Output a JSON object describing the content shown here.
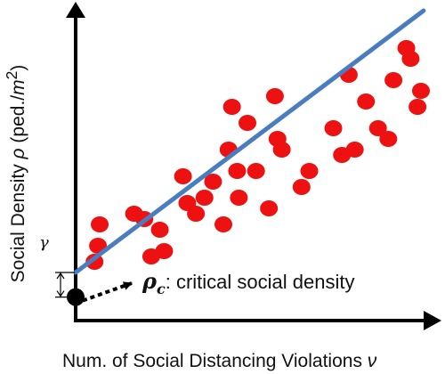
{
  "chart_data": {
    "type": "scatter",
    "title": "",
    "ylabel": "Social Density ρ (ped./m²)",
    "ylabel_parts": {
      "text": "Social Density ",
      "sym": "ρ",
      "unit": "(ped./",
      "unit_var": "m",
      "unit_exp": "2",
      "close": ")"
    },
    "xlabel": "Num. of Social Distancing Violations ν",
    "xlabel_parts": {
      "text": "Num. of Social Distancing Violations ",
      "sym": "ν"
    },
    "annotation": {
      "symbol": "ρ",
      "subscript": "c",
      "text": ": critical social density"
    },
    "offset_label": "γ",
    "colors": {
      "points": "#ee1111",
      "fit": "#4a7cc0",
      "axes": "#000000",
      "marker": "#000000"
    },
    "x": [
      22,
      26,
      28,
      68,
      80,
      88,
      98,
      103,
      125,
      130,
      140,
      150,
      160,
      172,
      178,
      182,
      188,
      190,
      200,
      210,
      225,
      232,
      235,
      240,
      263,
      272,
      300,
      310,
      318,
      325,
      338,
      352,
      364,
      370,
      385,
      390,
      398,
      402
    ],
    "y": [
      5.5,
      7.0,
      9.0,
      10.0,
      9.5,
      6.0,
      8.5,
      6.5,
      13.5,
      11.0,
      10.0,
      11.5,
      13.0,
      9.0,
      16.0,
      20.0,
      14.0,
      11.5,
      18.5,
      14.0,
      10.5,
      21.0,
      17.0,
      16.0,
      12.5,
      14.0,
      18.0,
      15.5,
      23.0,
      16.0,
      20.5,
      18.0,
      17.0,
      22.5,
      25.5,
      24.5,
      20.0,
      21.5
    ],
    "fit": {
      "intercept": 4.5,
      "slope": 0.0605
    },
    "xlim": [
      0,
      430
    ],
    "ylim": [
      0,
      30
    ],
    "critical_point": {
      "x": 0,
      "y": 2.2
    }
  }
}
